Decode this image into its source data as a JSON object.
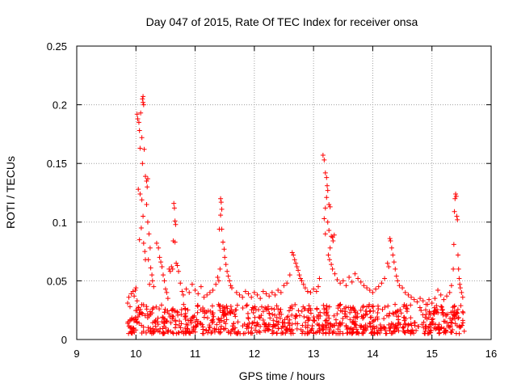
{
  "chart_data": {
    "type": "scatter",
    "title": "Day 047 of 2015, Rate Of TEC Index for receiver onsa",
    "xlabel": "GPS time / hours",
    "ylabel": "ROTI / TECUs",
    "xlim": [
      9,
      16
    ],
    "ylim": [
      0,
      0.25
    ],
    "x_ticks": [
      9,
      10,
      11,
      12,
      13,
      14,
      15,
      16
    ],
    "x_tick_labels": [
      "9",
      "10",
      "11",
      "12",
      "13",
      "14",
      "15",
      "16"
    ],
    "y_ticks": [
      0,
      0.05,
      0.1,
      0.15,
      0.2,
      0.25
    ],
    "y_tick_labels": [
      "0",
      "0.05",
      "0.1",
      "0.15",
      "0.2",
      "0.25"
    ],
    "grid": true,
    "marker": "+",
    "marker_color": "#ff0000",
    "grid_color": "#a0a0a0",
    "background_band": {
      "x_range": [
        9.85,
        15.55
      ],
      "y_range": [
        0.005,
        0.03
      ]
    },
    "series": [
      {
        "name": "ROTI",
        "points": [
          [
            9.86,
            0.031
          ],
          [
            9.88,
            0.036
          ],
          [
            9.9,
            0.028
          ],
          [
            9.92,
            0.039
          ],
          [
            9.95,
            0.041
          ],
          [
            9.97,
            0.037
          ],
          [
            9.99,
            0.042
          ],
          [
            10.0,
            0.044
          ],
          [
            10.02,
            0.033
          ],
          [
            10.02,
            0.192
          ],
          [
            10.03,
            0.188
          ],
          [
            10.05,
            0.185
          ],
          [
            10.06,
            0.178
          ],
          [
            10.07,
            0.163
          ],
          [
            10.08,
            0.193
          ],
          [
            10.1,
            0.172
          ],
          [
            10.11,
            0.205
          ],
          [
            10.12,
            0.207
          ],
          [
            10.12,
            0.202
          ],
          [
            10.13,
            0.2
          ],
          [
            10.14,
            0.162
          ],
          [
            10.11,
            0.15
          ],
          [
            10.04,
            0.128
          ],
          [
            10.07,
            0.124
          ],
          [
            10.1,
            0.119
          ],
          [
            10.12,
            0.105
          ],
          [
            10.09,
            0.095
          ],
          [
            10.06,
            0.085
          ],
          [
            10.13,
            0.082
          ],
          [
            10.15,
            0.075
          ],
          [
            10.16,
            0.139
          ],
          [
            10.18,
            0.135
          ],
          [
            10.2,
            0.137
          ],
          [
            10.19,
            0.13
          ],
          [
            10.18,
            0.115
          ],
          [
            10.2,
            0.1
          ],
          [
            10.22,
            0.09
          ],
          [
            10.24,
            0.078
          ],
          [
            10.25,
            0.061
          ],
          [
            10.27,
            0.055
          ],
          [
            10.16,
            0.068
          ],
          [
            10.21,
            0.068
          ],
          [
            10.23,
            0.047
          ],
          [
            10.28,
            0.05
          ],
          [
            10.3,
            0.045
          ],
          [
            10.35,
            0.082
          ],
          [
            10.38,
            0.078
          ],
          [
            10.4,
            0.07
          ],
          [
            10.42,
            0.066
          ],
          [
            10.44,
            0.062
          ],
          [
            10.46,
            0.055
          ],
          [
            10.48,
            0.05
          ],
          [
            10.5,
            0.043
          ],
          [
            10.52,
            0.04
          ],
          [
            10.54,
            0.035
          ],
          [
            10.56,
            0.06
          ],
          [
            10.58,
            0.058
          ],
          [
            10.6,
            0.062
          ],
          [
            10.62,
            0.06
          ],
          [
            10.64,
            0.116
          ],
          [
            10.65,
            0.112
          ],
          [
            10.66,
            0.101
          ],
          [
            10.67,
            0.098
          ],
          [
            10.63,
            0.084
          ],
          [
            10.66,
            0.083
          ],
          [
            10.68,
            0.065
          ],
          [
            10.7,
            0.063
          ],
          [
            10.72,
            0.058
          ],
          [
            10.75,
            0.048
          ],
          [
            10.78,
            0.041
          ],
          [
            10.8,
            0.038
          ],
          [
            10.85,
            0.043
          ],
          [
            10.9,
            0.04
          ],
          [
            10.95,
            0.047
          ],
          [
            11.0,
            0.042
          ],
          [
            11.05,
            0.039
          ],
          [
            11.1,
            0.045
          ],
          [
            11.15,
            0.036
          ],
          [
            11.2,
            0.038
          ],
          [
            11.25,
            0.04
          ],
          [
            11.3,
            0.042
          ],
          [
            11.35,
            0.047
          ],
          [
            11.38,
            0.053
          ],
          [
            11.4,
            0.05
          ],
          [
            11.42,
            0.06
          ],
          [
            11.43,
            0.12
          ],
          [
            11.44,
            0.117
          ],
          [
            11.45,
            0.111
          ],
          [
            11.43,
            0.106
          ],
          [
            11.41,
            0.094
          ],
          [
            11.45,
            0.094
          ],
          [
            11.47,
            0.083
          ],
          [
            11.49,
            0.077
          ],
          [
            11.5,
            0.07
          ],
          [
            11.52,
            0.064
          ],
          [
            11.54,
            0.058
          ],
          [
            11.56,
            0.054
          ],
          [
            11.58,
            0.05
          ],
          [
            11.6,
            0.046
          ],
          [
            11.62,
            0.044
          ],
          [
            11.7,
            0.04
          ],
          [
            11.75,
            0.038
          ],
          [
            11.8,
            0.036
          ],
          [
            11.85,
            0.041
          ],
          [
            11.9,
            0.039
          ],
          [
            11.95,
            0.036
          ],
          [
            12.0,
            0.04
          ],
          [
            12.05,
            0.038
          ],
          [
            12.1,
            0.035
          ],
          [
            12.15,
            0.041
          ],
          [
            12.2,
            0.039
          ],
          [
            12.25,
            0.037
          ],
          [
            12.3,
            0.04
          ],
          [
            12.35,
            0.038
          ],
          [
            12.4,
            0.042
          ],
          [
            12.45,
            0.04
          ],
          [
            12.5,
            0.046
          ],
          [
            12.55,
            0.048
          ],
          [
            12.6,
            0.055
          ],
          [
            12.64,
            0.074
          ],
          [
            12.66,
            0.072
          ],
          [
            12.68,
            0.068
          ],
          [
            12.7,
            0.065
          ],
          [
            12.72,
            0.062
          ],
          [
            12.74,
            0.059
          ],
          [
            12.76,
            0.055
          ],
          [
            12.78,
            0.052
          ],
          [
            12.8,
            0.05
          ],
          [
            12.83,
            0.047
          ],
          [
            12.86,
            0.044
          ],
          [
            12.9,
            0.041
          ],
          [
            12.95,
            0.04
          ],
          [
            13.0,
            0.043
          ],
          [
            13.05,
            0.041
          ],
          [
            13.08,
            0.045
          ],
          [
            13.1,
            0.052
          ],
          [
            13.16,
            0.157
          ],
          [
            13.18,
            0.153
          ],
          [
            13.2,
            0.142
          ],
          [
            13.22,
            0.138
          ],
          [
            13.23,
            0.131
          ],
          [
            13.24,
            0.127
          ],
          [
            13.22,
            0.121
          ],
          [
            13.26,
            0.115
          ],
          [
            13.28,
            0.113
          ],
          [
            13.2,
            0.112
          ],
          [
            13.18,
            0.103
          ],
          [
            13.24,
            0.1
          ],
          [
            13.26,
            0.093
          ],
          [
            13.2,
            0.09
          ],
          [
            13.3,
            0.088
          ],
          [
            13.32,
            0.087
          ],
          [
            13.35,
            0.089
          ],
          [
            13.33,
            0.084
          ],
          [
            13.28,
            0.078
          ],
          [
            13.25,
            0.072
          ],
          [
            13.27,
            0.068
          ],
          [
            13.3,
            0.064
          ],
          [
            13.32,
            0.06
          ],
          [
            13.36,
            0.056
          ],
          [
            13.4,
            0.051
          ],
          [
            13.45,
            0.048
          ],
          [
            13.5,
            0.05
          ],
          [
            13.55,
            0.046
          ],
          [
            13.6,
            0.053
          ],
          [
            13.65,
            0.049
          ],
          [
            13.7,
            0.056
          ],
          [
            13.75,
            0.052
          ],
          [
            13.8,
            0.049
          ],
          [
            13.85,
            0.046
          ],
          [
            13.9,
            0.044
          ],
          [
            13.95,
            0.042
          ],
          [
            14.0,
            0.04
          ],
          [
            14.05,
            0.043
          ],
          [
            14.1,
            0.045
          ],
          [
            14.15,
            0.048
          ],
          [
            14.2,
            0.052
          ],
          [
            14.25,
            0.065
          ],
          [
            14.27,
            0.062
          ],
          [
            14.29,
            0.086
          ],
          [
            14.3,
            0.084
          ],
          [
            14.32,
            0.078
          ],
          [
            14.34,
            0.072
          ],
          [
            14.36,
            0.066
          ],
          [
            14.38,
            0.06
          ],
          [
            14.4,
            0.054
          ],
          [
            14.42,
            0.05
          ],
          [
            14.45,
            0.046
          ],
          [
            14.5,
            0.044
          ],
          [
            14.55,
            0.04
          ],
          [
            14.6,
            0.038
          ],
          [
            14.65,
            0.036
          ],
          [
            14.7,
            0.034
          ],
          [
            14.75,
            0.032
          ],
          [
            14.8,
            0.035
          ],
          [
            14.85,
            0.033
          ],
          [
            14.9,
            0.03
          ],
          [
            14.95,
            0.034
          ],
          [
            15.0,
            0.031
          ],
          [
            15.05,
            0.035
          ],
          [
            15.1,
            0.042
          ],
          [
            15.15,
            0.038
          ],
          [
            15.2,
            0.034
          ],
          [
            15.25,
            0.037
          ],
          [
            15.3,
            0.04
          ],
          [
            15.33,
            0.046
          ],
          [
            15.36,
            0.06
          ],
          [
            15.37,
            0.081
          ],
          [
            15.38,
            0.109
          ],
          [
            15.39,
            0.12
          ],
          [
            15.4,
            0.124
          ],
          [
            15.41,
            0.122
          ],
          [
            15.42,
            0.105
          ],
          [
            15.43,
            0.102
          ],
          [
            15.44,
            0.072
          ],
          [
            15.45,
            0.06
          ],
          [
            15.46,
            0.052
          ],
          [
            15.47,
            0.047
          ],
          [
            15.48,
            0.044
          ],
          [
            15.5,
            0.04
          ],
          [
            15.52,
            0.036
          ]
        ]
      }
    ]
  }
}
